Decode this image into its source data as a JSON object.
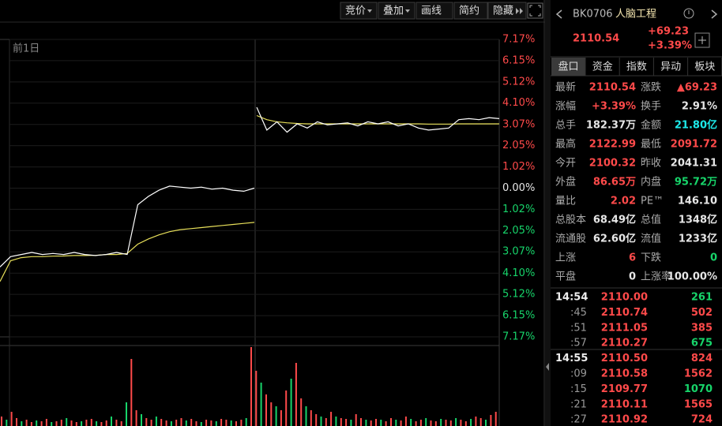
{
  "toolbar": [
    "竞价",
    "叠加",
    "画线",
    "简约",
    "隐藏"
  ],
  "chart": {
    "prev_label": "前1日",
    "ylim": [
      -7.17,
      7.17
    ],
    "yticks": [
      {
        "value": 7.17,
        "label": "7.17%"
      },
      {
        "value": 6.15,
        "label": "6.15%"
      },
      {
        "value": 5.12,
        "label": "5.12%"
      },
      {
        "value": 4.1,
        "label": "4.10%"
      },
      {
        "value": 3.07,
        "label": "3.07%"
      },
      {
        "value": 2.05,
        "label": "2.05%"
      },
      {
        "value": 1.02,
        "label": "1.02%"
      },
      {
        "value": 0,
        "label": "0.00%"
      },
      {
        "value": -1.02,
        "label": "1.02%"
      },
      {
        "value": -2.05,
        "label": "2.05%"
      },
      {
        "value": -3.07,
        "label": "3.07%"
      },
      {
        "value": -4.1,
        "label": "4.10%"
      },
      {
        "value": -5.12,
        "label": "5.12%"
      },
      {
        "value": -6.15,
        "label": "6.15%"
      },
      {
        "value": -7.17,
        "label": "7.17%"
      }
    ],
    "prev_day": {
      "price": [
        -3.8,
        -3.3,
        -3.2,
        -3.1,
        -3.2,
        -3.15,
        -3.2,
        -3.1,
        -3.2,
        -3.25,
        -3.2,
        -3.1,
        -3.2,
        -0.8,
        -0.4,
        -0.1,
        0.1,
        0.05,
        0.0,
        0.05,
        -0.05,
        0.0,
        -0.1,
        -0.15,
        0.0
      ],
      "avg": [
        -4.5,
        -3.5,
        -3.35,
        -3.3,
        -3.3,
        -3.28,
        -3.27,
        -3.25,
        -3.25,
        -3.24,
        -3.2,
        -3.2,
        -3.15,
        -2.7,
        -2.45,
        -2.25,
        -2.1,
        -2.0,
        -1.95,
        -1.9,
        -1.85,
        -1.8,
        -1.75,
        -1.7,
        -1.65
      ]
    },
    "today": {
      "price": [
        3.9,
        2.8,
        3.2,
        2.7,
        3.1,
        2.9,
        3.2,
        3.05,
        3.1,
        3.15,
        3.0,
        3.2,
        3.1,
        3.2,
        3.0,
        3.1,
        2.9,
        2.8,
        2.85,
        2.9,
        3.3,
        3.35,
        3.3,
        3.4,
        3.35
      ],
      "avg": [
        3.5,
        3.3,
        3.2,
        3.15,
        3.12,
        3.1,
        3.1,
        3.1,
        3.1,
        3.1,
        3.1,
        3.1,
        3.1,
        3.1,
        3.1,
        3.1,
        3.1,
        3.09,
        3.09,
        3.09,
        3.1,
        3.1,
        3.1,
        3.1,
        3.1
      ]
    },
    "volume": [
      12,
      8,
      18,
      10,
      6,
      8,
      5,
      7,
      6,
      9,
      5,
      6,
      8,
      10,
      7,
      5,
      6,
      8,
      9,
      6,
      5,
      7,
      12,
      8,
      6,
      30,
      85,
      20,
      15,
      10,
      8,
      12,
      9,
      7,
      6,
      8,
      10,
      7,
      9,
      6,
      5,
      8,
      7,
      6,
      9,
      8,
      7,
      6,
      8,
      10,
      100,
      70,
      55,
      40,
      30,
      25,
      20,
      45,
      60,
      80,
      35,
      25,
      20,
      15,
      12,
      10,
      18,
      12,
      10,
      9,
      8,
      15,
      10,
      8,
      7,
      9,
      8,
      6,
      10,
      8,
      7,
      12,
      9,
      6,
      8,
      10,
      7,
      6,
      9,
      8,
      7,
      10,
      8,
      6,
      9,
      12,
      10,
      8,
      14,
      18
    ]
  },
  "quote": {
    "code": "BK0706",
    "name": "人脑工程",
    "price": "2110.54",
    "change": "+69.23",
    "change_pct": "+3.39%"
  },
  "tabs": [
    "盘口",
    "资金",
    "指数",
    "异动",
    "板块"
  ],
  "stats": [
    [
      {
        "label": "最新",
        "value": "2110.54",
        "color": "red"
      },
      {
        "label": "涨跌",
        "value": "▲69.23",
        "color": "red"
      }
    ],
    [
      {
        "label": "涨幅",
        "value": "+3.39%",
        "color": "red"
      },
      {
        "label": "换手",
        "value": "2.91%",
        "color": "white"
      }
    ],
    [
      {
        "label": "总手",
        "value": "182.37万",
        "color": "white"
      },
      {
        "label": "金额",
        "value": "21.80亿",
        "color": "cyan"
      }
    ],
    [
      {
        "label": "最高",
        "value": "2122.99",
        "color": "red"
      },
      {
        "label": "最低",
        "value": "2091.72",
        "color": "red"
      }
    ],
    [
      {
        "label": "今开",
        "value": "2100.32",
        "color": "red"
      },
      {
        "label": "昨收",
        "value": "2041.31",
        "color": "white"
      }
    ],
    [
      {
        "label": "外盘",
        "value": "86.65万",
        "color": "red"
      },
      {
        "label": "内盘",
        "value": "95.72万",
        "color": "green"
      }
    ],
    [
      {
        "label": "量比",
        "value": "2.02",
        "color": "red"
      },
      {
        "label": "PE™",
        "value": "146.10",
        "color": "white"
      }
    ],
    [
      {
        "label": "总股本",
        "value": "68.49亿",
        "color": "white"
      },
      {
        "label": "总值",
        "value": "1348亿",
        "color": "white"
      }
    ],
    [
      {
        "label": "流通股",
        "value": "62.60亿",
        "color": "white"
      },
      {
        "label": "流值",
        "value": "1233亿",
        "color": "white"
      }
    ],
    [
      {
        "label": "上涨",
        "value": "6",
        "color": "red"
      },
      {
        "label": "下跌",
        "value": "0",
        "color": "green"
      }
    ],
    [
      {
        "label": "平盘",
        "value": "0",
        "color": "white"
      },
      {
        "label": "上涨率",
        "value": "100.00%",
        "color": "white"
      }
    ]
  ],
  "trades": [
    {
      "time": "14:54",
      "price": "2110.00",
      "volume": "261",
      "vol_color": "green"
    },
    {
      "time": ":45",
      "price": "2110.74",
      "volume": "502",
      "vol_color": "red"
    },
    {
      "time": ":51",
      "price": "2111.05",
      "volume": "385",
      "vol_color": "red"
    },
    {
      "time": ":57",
      "price": "2110.27",
      "volume": "675",
      "vol_color": "green"
    },
    {
      "time": "14:55",
      "price": "2110.50",
      "volume": "824",
      "vol_color": "red"
    },
    {
      "time": ":09",
      "price": "2110.58",
      "volume": "1562",
      "vol_color": "red"
    },
    {
      "time": ":15",
      "price": "2109.77",
      "volume": "1070",
      "vol_color": "green"
    },
    {
      "time": ":21",
      "price": "2110.11",
      "volume": "1565",
      "vol_color": "red"
    },
    {
      "time": ":27",
      "price": "2110.92",
      "volume": "724",
      "vol_color": "red"
    }
  ]
}
